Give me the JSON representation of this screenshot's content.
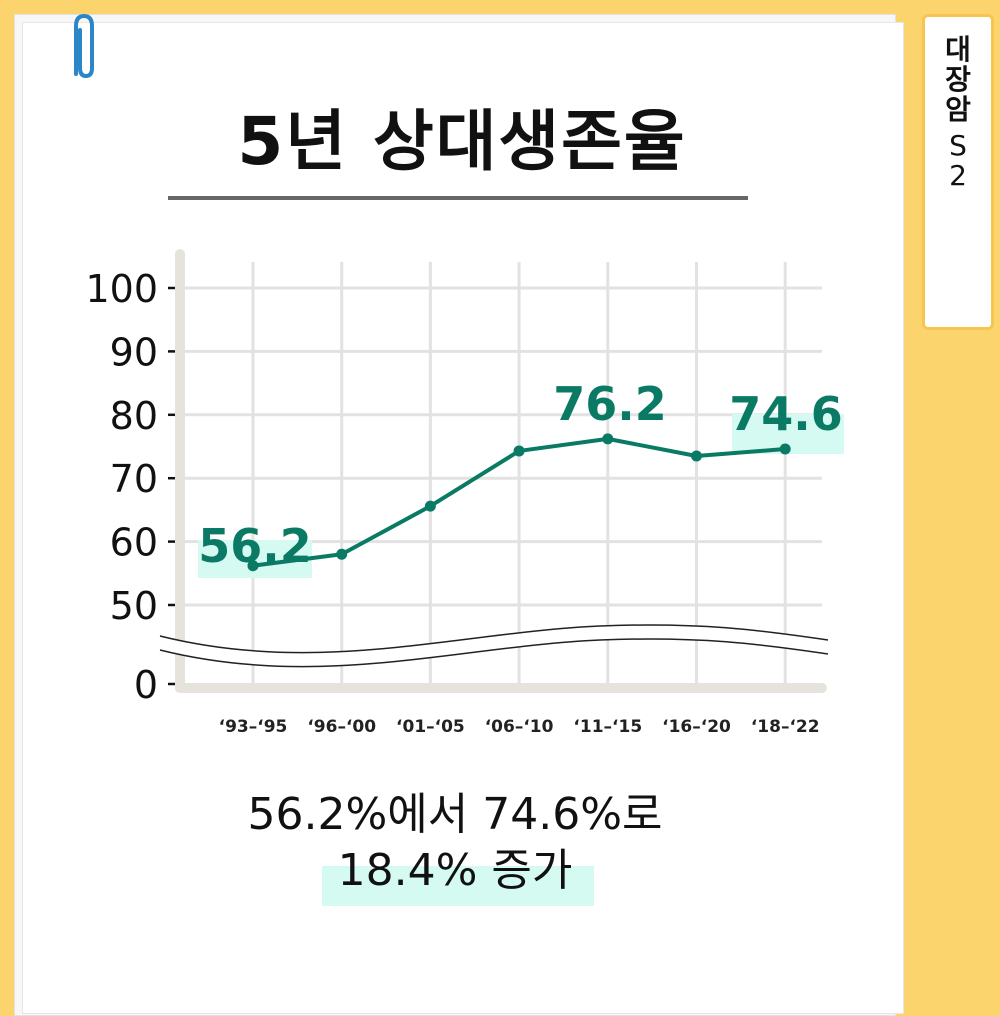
{
  "side_tab": {
    "line1": "대",
    "line2": "장",
    "line3": "암",
    "line4": "S",
    "line5": "2"
  },
  "title": "5년 상대생존율",
  "summary": {
    "line1": "56.2%에서 74.6%로",
    "line2": "18.4% 증가"
  },
  "colors": {
    "background": "#fcd46e",
    "series": "#0a7a64",
    "label_highlight": "#d4faf2",
    "grid": "#e2e2e2",
    "axis": "#e6e2dc"
  },
  "chart_data": {
    "type": "line",
    "title": "5년 상대생존율",
    "categories": [
      "‘93–‘95",
      "‘96–‘00",
      "‘01–‘05",
      "‘06–‘10",
      "‘11–‘15",
      "‘16–‘20",
      "‘18–‘22"
    ],
    "series": [
      {
        "values": [
          56.2,
          58.0,
          65.6,
          74.3,
          76.2,
          73.5,
          74.6
        ]
      }
    ],
    "yticks": [
      0,
      50,
      60,
      70,
      80,
      90,
      100
    ],
    "ylim": [
      0,
      100
    ],
    "axis_break": true,
    "data_labels": [
      {
        "index": 0,
        "text": "56.2"
      },
      {
        "index": 4,
        "text": "76.2"
      },
      {
        "index": 6,
        "text": "74.6"
      }
    ],
    "xlabel": "",
    "ylabel": "",
    "grid": true
  }
}
